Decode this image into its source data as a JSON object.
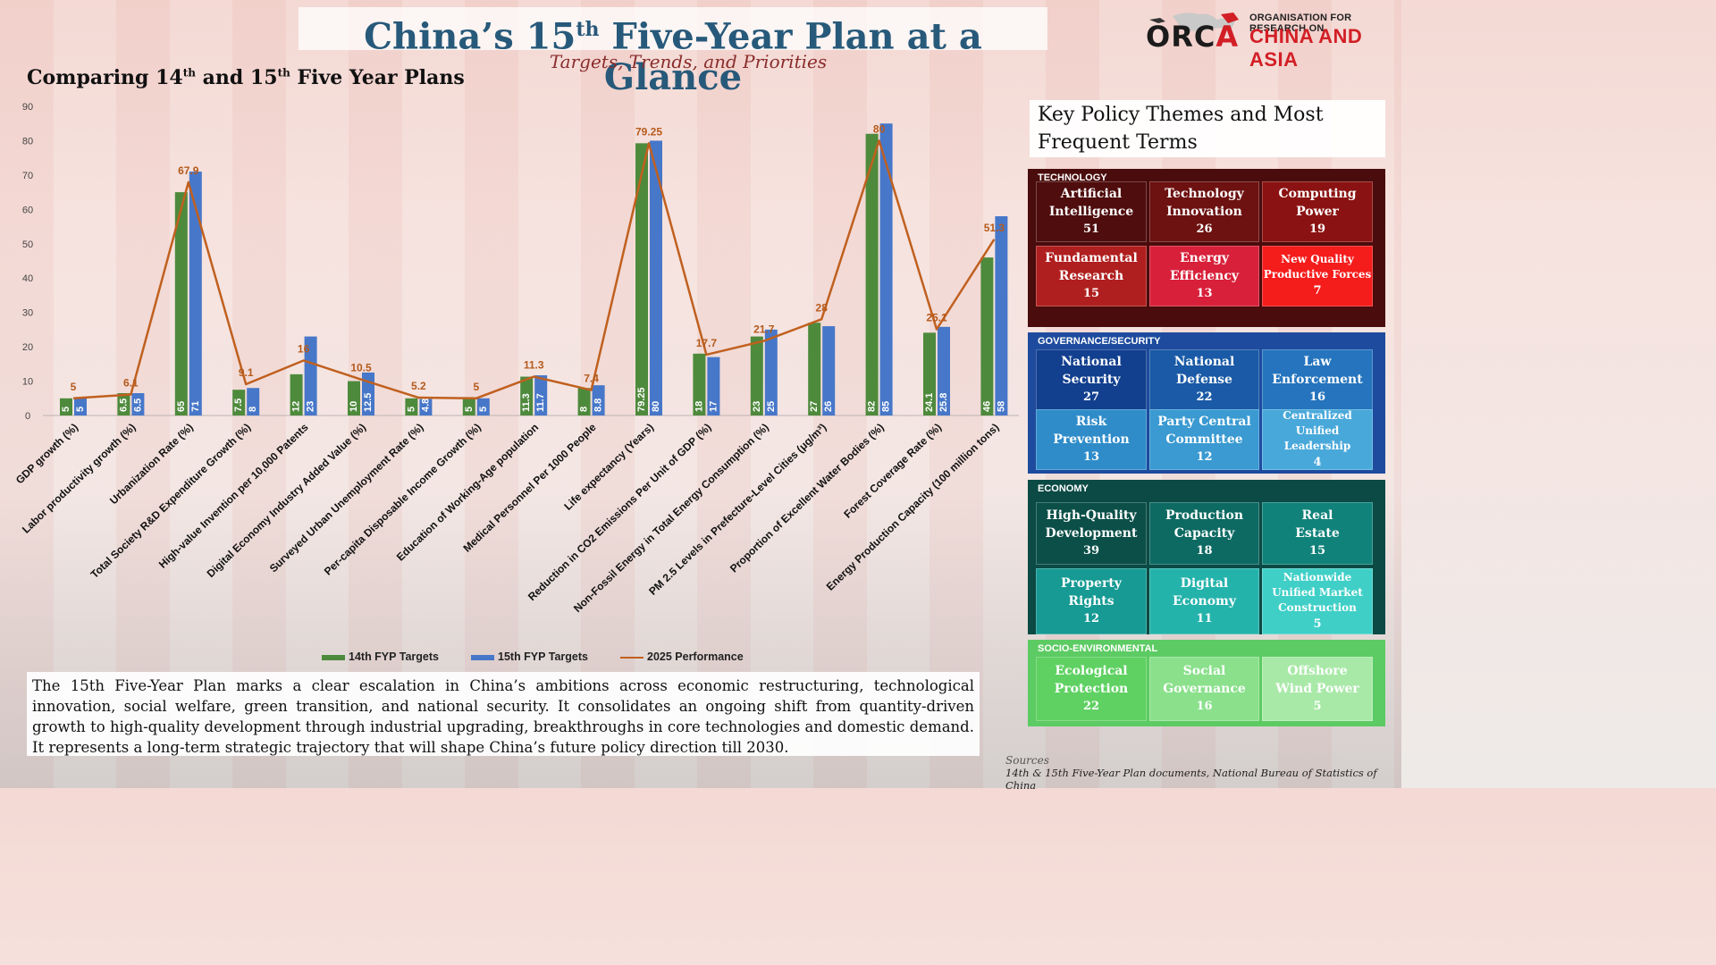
{
  "header": {
    "title_pre": "China’s 15",
    "title_sup": "th",
    "title_post": " Five-Year Plan at a Glance",
    "subtitle": "Targets, Trends, and Priorities"
  },
  "logo": {
    "text_left": "ORC",
    "text_right": "A",
    "org_line": "ORGANISATION FOR RESEARCH ON",
    "region_line": "CHINA AND ASIA"
  },
  "chart_heading": {
    "part1": "Comparing 14",
    "sup1": "th",
    "part2": " and 15",
    "sup2": "th",
    "part3": " Five Year Plans"
  },
  "chart_data": {
    "type": "bar",
    "categories": [
      "GDP growth (%)",
      "Labor productivity growth (%)",
      "Urbanization Rate (%)",
      "Total Society R&D Expenditure Growth (%)",
      "High-value Invention per 10,000 Patents",
      "Digital Economy Industry Added Value (%)",
      "Surveyed Urban Unemployment Rate (%)",
      "Per-capita Disposable Income Growth (%)",
      "Education of Working-Age population",
      "Medical Personnel Per 1000 People",
      "Life expectancy (Years)",
      "Reduction in CO2 Emissions Per Unit of GDP (%)",
      "Non-Fossil Energy in Total Energy Consumption (%)",
      "PM 2.5 Levels in Prefecture-Level Cities (μg/m³)",
      "Proportion of Excellent Water Bodies (%)",
      "Forest Coverage Rate (%)",
      "Energy Production Capacity (100 million tons)"
    ],
    "series": [
      {
        "name": "14th FYP Targets",
        "type": "bar",
        "color": "#4e8a3c",
        "values": [
          5,
          6.5,
          65,
          7.5,
          12,
          10,
          5,
          5,
          11.3,
          8,
          79.25,
          18,
          23,
          27,
          82,
          24.1,
          46
        ],
        "labels": [
          "5",
          "6.5",
          "65",
          "7.5",
          "12",
          "10",
          "5",
          "5",
          "11.3",
          "8",
          "79.25",
          "18",
          "23",
          "27",
          "82",
          "24.1",
          "46"
        ]
      },
      {
        "name": "15th FYP Targets",
        "type": "bar",
        "color": "#4777c9",
        "values": [
          5,
          6.5,
          71,
          8,
          23,
          12.5,
          4.8,
          5,
          11.7,
          8.8,
          80,
          17,
          25,
          26,
          85,
          25.8,
          58
        ],
        "labels": [
          "5",
          "6.5",
          "71",
          "8",
          "23",
          "12.5",
          "4.8",
          "5",
          "11.7",
          "8.8",
          "80",
          "17",
          "25",
          "26",
          "85",
          "25.8",
          "58"
        ]
      },
      {
        "name": "2025 Performance",
        "type": "line",
        "color": "#c0601f",
        "values": [
          5,
          6.1,
          67.9,
          9.1,
          16,
          10.5,
          5.2,
          5,
          11.3,
          7.4,
          79.25,
          17.7,
          21.7,
          28,
          80,
          25.1,
          51.3
        ],
        "labels": [
          "5",
          "6.1",
          "67.9",
          "9.1",
          "16",
          "10.5",
          "5.2",
          "5",
          "11.3",
          "7.4",
          "79.25",
          "17.7",
          "21.7",
          "28",
          "80",
          "25.1",
          "51.3"
        ]
      }
    ],
    "yticks": [
      "0",
      "10",
      "20",
      "30",
      "40",
      "50",
      "60",
      "70",
      "80",
      "90"
    ],
    "ylim": [
      0,
      90
    ],
    "legend_position": "bottom",
    "grid": false
  },
  "summary": "The 15th Five-Year Plan marks a clear escalation in China’s ambitions across economic restructuring, technological innovation, social welfare, green transition, and national security. It consolidates an ongoing shift from quantity-driven growth to high-quality development through industrial upgrading, breakthroughs in core technologies and domestic demand. It represents a long-term strategic trajectory that will shape China’s future policy direction till 2030.",
  "sources": {
    "heading": "Sources",
    "text": "14th & 15th Five-Year Plan documents, National Bureau of Statistics of China"
  },
  "themes": {
    "title_line1": "Key Policy Themes and Most",
    "title_line2": "Frequent Terms",
    "categories": [
      {
        "label": "TECHNOLOGY",
        "bg": "#4a0c0c",
        "tiles": [
          {
            "name": [
              "Artificial",
              "Intelligence"
            ],
            "count": "51",
            "color": "#4f0d0d"
          },
          {
            "name": [
              "Technology",
              "Innovation"
            ],
            "count": "26",
            "color": "#6d1111"
          },
          {
            "name": [
              "Computing",
              "Power"
            ],
            "count": "19",
            "color": "#8b1212"
          },
          {
            "name": [
              "Fundamental",
              "Research"
            ],
            "count": "15",
            "color": "#b01f1f"
          },
          {
            "name": [
              "Energy",
              "Efficiency"
            ],
            "count": "13",
            "color": "#d8203a"
          },
          {
            "name": [
              "New Quality",
              "Productive Forces"
            ],
            "count": "7",
            "color": "#f51c1c"
          }
        ]
      },
      {
        "label": "GOVERNANCE/SECURITY",
        "bg": "#1e4b9e",
        "tiles": [
          {
            "name": [
              "National",
              "Security"
            ],
            "count": "27",
            "color": "#123f8e"
          },
          {
            "name": [
              "National",
              "Defense"
            ],
            "count": "22",
            "color": "#1a5aa6"
          },
          {
            "name": [
              "Law",
              "Enforcement"
            ],
            "count": "16",
            "color": "#2574bd"
          },
          {
            "name": [
              "Risk",
              "Prevention"
            ],
            "count": "13",
            "color": "#2f8cc9"
          },
          {
            "name": [
              "Party Central",
              "Committee"
            ],
            "count": "12",
            "color": "#3a9ad1"
          },
          {
            "name": [
              "Centralized",
              "Unified Leadership"
            ],
            "count": "4",
            "color": "#49a8da"
          }
        ]
      },
      {
        "label": "ECONOMY",
        "bg": "#0c4a45",
        "tiles": [
          {
            "name": [
              "High-Quality",
              "Development"
            ],
            "count": "39",
            "color": "#0b4f48"
          },
          {
            "name": [
              "Production",
              "Capacity"
            ],
            "count": "18",
            "color": "#0d6a62"
          },
          {
            "name": [
              "Real",
              "Estate"
            ],
            "count": "15",
            "color": "#10827a"
          },
          {
            "name": [
              "Property",
              "Rights"
            ],
            "count": "12",
            "color": "#169a93"
          },
          {
            "name": [
              "Digital",
              "Economy"
            ],
            "count": "11",
            "color": "#24b3ab"
          },
          {
            "name": [
              "Nationwide",
              "Unified Market",
              "Construction"
            ],
            "count": "5",
            "color": "#3fcfc7"
          }
        ]
      },
      {
        "label": "SOCIO-ENVIRONMENTAL",
        "bg": "#5dcb63",
        "tiles": [
          {
            "name": [
              "Ecological",
              "Protection"
            ],
            "count": "22",
            "color": "#5fd162"
          },
          {
            "name": [
              "Social",
              "Governance"
            ],
            "count": "16",
            "color": "#8be08c"
          },
          {
            "name": [
              "Offshore",
              "Wind Power"
            ],
            "count": "5",
            "color": "#a9e9a8"
          }
        ]
      }
    ]
  }
}
